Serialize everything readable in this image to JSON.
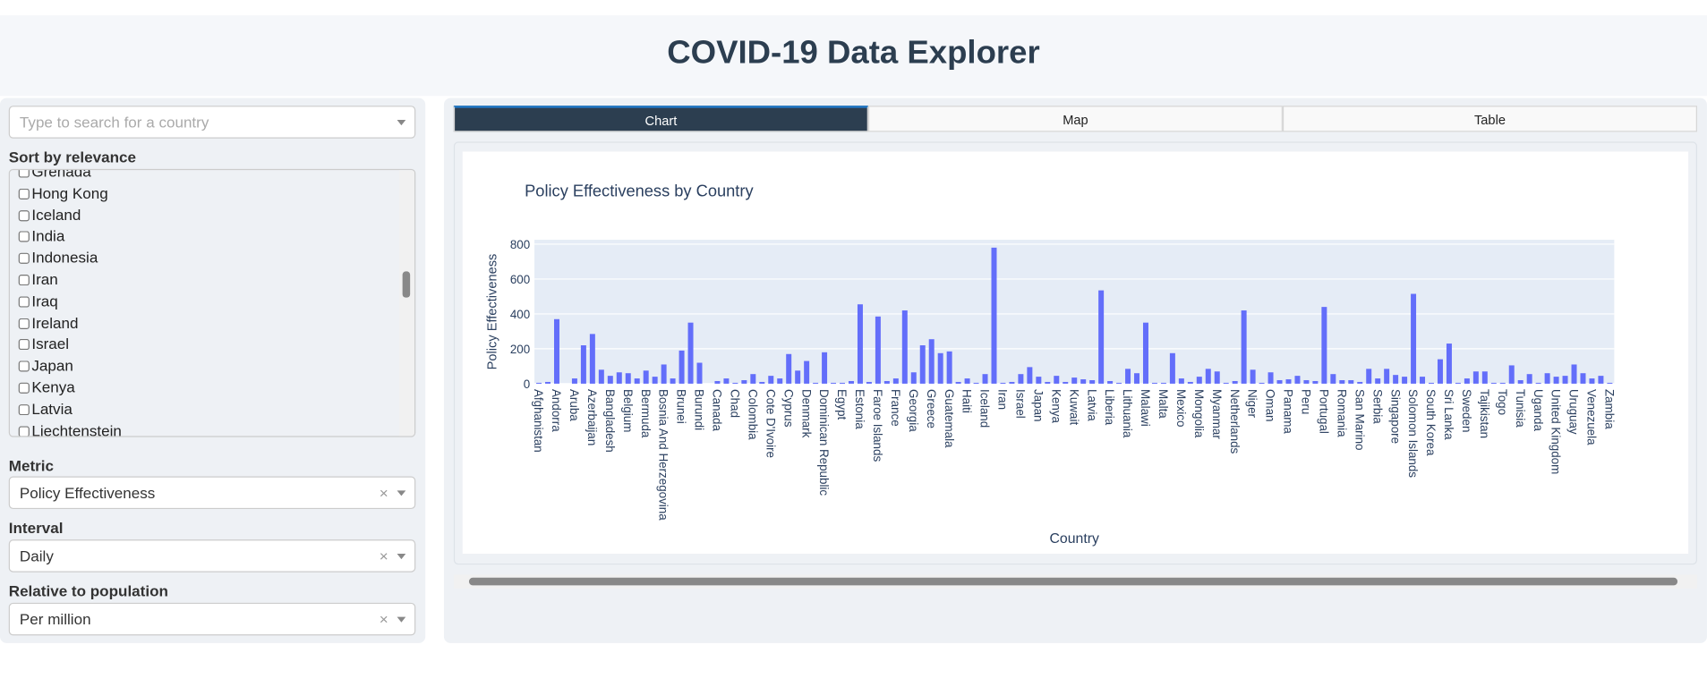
{
  "header": {
    "title": "COVID-19 Data Explorer"
  },
  "sidebar": {
    "search_placeholder": "Type to search for a country",
    "sort_label": "Sort by relevance",
    "countries": [
      "Grenada",
      "Hong Kong",
      "Iceland",
      "India",
      "Indonesia",
      "Iran",
      "Iraq",
      "Ireland",
      "Israel",
      "Japan",
      "Kenya",
      "Latvia",
      "Liechtenstein"
    ],
    "metric_label": "Metric",
    "metric_value": "Policy Effectiveness",
    "interval_label": "Interval",
    "interval_value": "Daily",
    "population_label": "Relative to population",
    "population_value": "Per million"
  },
  "tabs": [
    "Chart",
    "Map",
    "Table"
  ],
  "chart_data": {
    "type": "bar",
    "title": "Policy Effectiveness by Country",
    "x_label": "Country",
    "y_label": "Policy Effectiveness",
    "color": "#636efa",
    "ylim": [
      0,
      825
    ],
    "yticks": [
      0,
      200,
      400,
      600,
      800
    ],
    "grid": true,
    "categories": [
      "Afghanistan",
      null,
      "Andorra",
      null,
      "Aruba",
      null,
      "Azerbaijan",
      null,
      "Bangladesh",
      null,
      "Belgium",
      null,
      "Bermuda",
      null,
      "Bosnia And Herzegovina",
      null,
      "Brunei",
      null,
      "Burundi",
      null,
      "Canada",
      null,
      "Chad",
      null,
      "Colombia",
      null,
      "Cote D'Ivoire",
      null,
      "Cyprus",
      null,
      "Denmark",
      null,
      "Dominican Republic",
      null,
      "Egypt",
      null,
      "Estonia",
      null,
      "Faroe Islands",
      null,
      "France",
      null,
      "Georgia",
      null,
      "Greece",
      null,
      "Guatemala",
      null,
      "Haiti",
      null,
      "Iceland",
      null,
      "Iran",
      null,
      "Israel",
      null,
      "Japan",
      null,
      "Kenya",
      null,
      "Kuwait",
      null,
      "Latvia",
      null,
      "Liberia",
      null,
      "Lithuania",
      null,
      "Malawi",
      null,
      "Malta",
      null,
      "Mexico",
      null,
      "Mongolia",
      null,
      "Myanmar",
      null,
      "Netherlands",
      null,
      "Niger",
      null,
      "Oman",
      null,
      "Panama",
      null,
      "Peru",
      null,
      "Portugal",
      null,
      "Romania",
      null,
      "San Marino",
      null,
      "Serbia",
      null,
      "Singapore",
      null,
      "Solomon Islands",
      null,
      "South Korea",
      null,
      "Sri Lanka",
      null,
      "Sweden",
      null,
      "Tajikistan",
      null,
      "Togo",
      null,
      "Tunisia",
      null,
      "Uganda",
      null,
      "United Kingdom",
      null,
      "Uruguay",
      null,
      "Venezuela",
      null,
      "Zambia"
    ],
    "values": [
      5,
      10,
      370,
      0,
      30,
      220,
      285,
      80,
      45,
      65,
      60,
      30,
      75,
      40,
      110,
      30,
      190,
      350,
      120,
      0,
      15,
      30,
      5,
      20,
      55,
      10,
      45,
      30,
      170,
      75,
      130,
      5,
      180,
      5,
      5,
      15,
      455,
      10,
      385,
      15,
      30,
      420,
      65,
      220,
      255,
      175,
      185,
      10,
      30,
      5,
      55,
      780,
      5,
      10,
      55,
      95,
      40,
      10,
      45,
      10,
      35,
      25,
      20,
      535,
      15,
      5,
      85,
      60,
      350,
      5,
      5,
      175,
      30,
      10,
      40,
      85,
      70,
      5,
      15,
      420,
      80,
      5,
      65,
      20,
      25,
      45,
      20,
      15,
      440,
      55,
      20,
      20,
      10,
      85,
      30,
      85,
      50,
      40,
      515,
      40,
      5,
      140,
      230,
      5,
      30,
      70,
      70,
      5,
      5,
      105,
      20,
      55,
      5,
      60,
      40,
      45,
      110,
      60,
      30,
      45,
      5
    ]
  }
}
